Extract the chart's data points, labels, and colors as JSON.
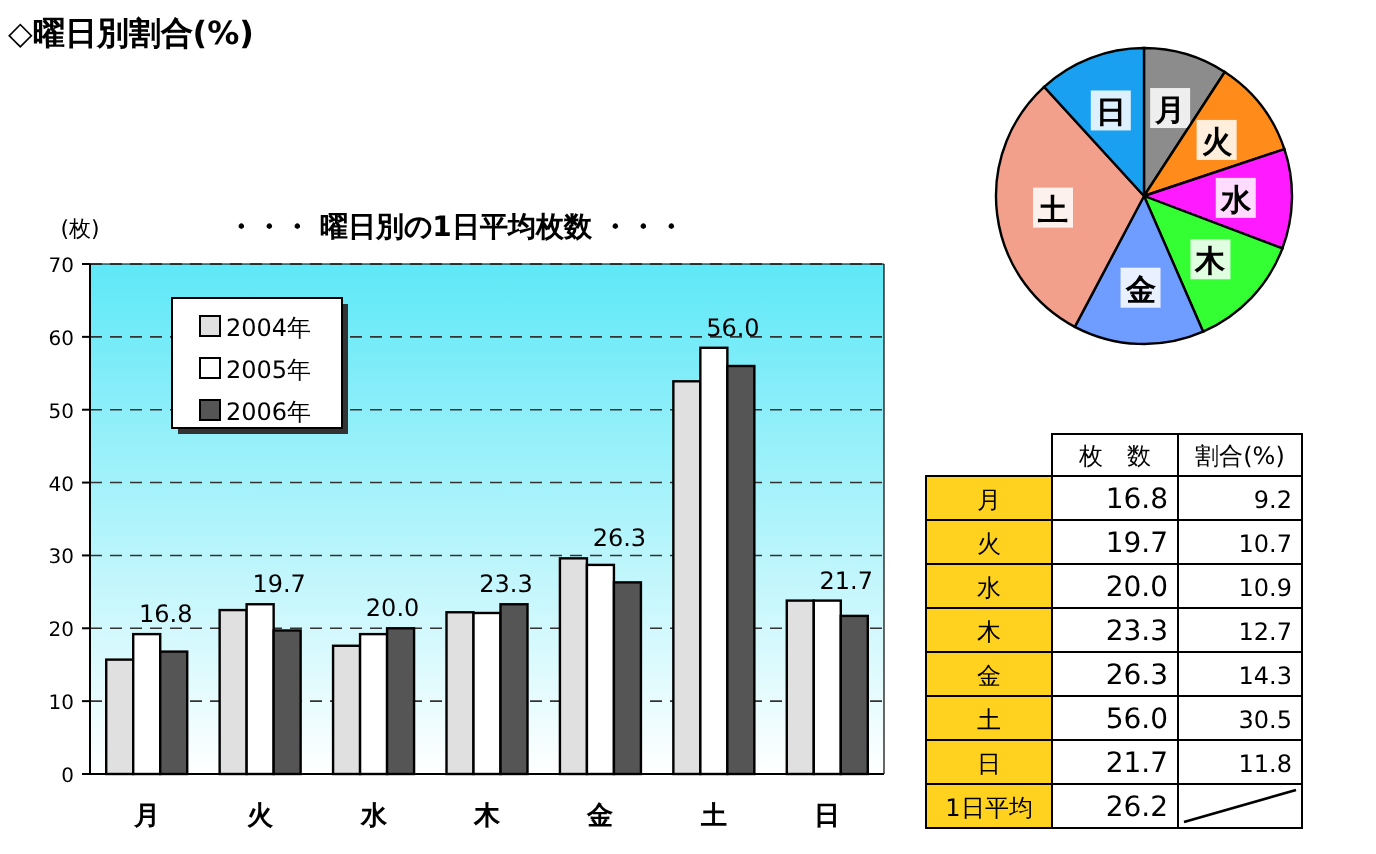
{
  "chart_data": [
    {
      "type": "pie",
      "categories": [
        "月",
        "火",
        "水",
        "木",
        "金",
        "土",
        "日"
      ],
      "values": [
        9.2,
        10.7,
        10.9,
        12.7,
        14.3,
        30.5,
        11.8
      ],
      "colors": [
        "#8c8c8c",
        "#ff8c1a",
        "#ff1aff",
        "#33ff33",
        "#6f9cff",
        "#f2a08c",
        "#1aa0f0"
      ]
    },
    {
      "type": "bar",
      "title": "◇曜日別割合(%)",
      "subtitle": "・・・ 曜日別の1日平均枚数 ・・・",
      "ylabel": "(枚)",
      "categories": [
        "月",
        "火",
        "水",
        "木",
        "金",
        "土",
        "日"
      ],
      "series": [
        {
          "name": "2004年",
          "color": "#e0e0e0",
          "values": [
            15.7,
            22.5,
            17.6,
            22.2,
            29.6,
            53.9,
            23.8
          ]
        },
        {
          "name": "2005年",
          "color": "#ffffff",
          "values": [
            19.2,
            23.3,
            19.2,
            22.1,
            28.7,
            58.5,
            23.8
          ]
        },
        {
          "name": "2006年",
          "color": "#555555",
          "values": [
            16.8,
            19.7,
            20.0,
            23.3,
            26.3,
            56.0,
            21.7
          ],
          "value_labels": [
            "16.8",
            "19.7",
            "20.0",
            "23.3",
            "26.3",
            "56.0",
            "21.7"
          ]
        }
      ],
      "ylim": [
        0,
        70
      ],
      "yticks": [
        0,
        10,
        20,
        30,
        40,
        50,
        60,
        70
      ],
      "grid": "y",
      "line_style": "dashed",
      "legend": "top left"
    },
    {
      "type": "other",
      "categories": [
        "月",
        "火",
        "水",
        "木",
        "金",
        "土",
        "日",
        "1日平均"
      ],
      "series": [
        {
          "name": "枚　数",
          "values": [
            16.8,
            19.7,
            20.0,
            23.3,
            26.3,
            56.0,
            21.7,
            26.2
          ],
          "value_labels": [
            "16.8",
            "19.7",
            "20.0",
            "23.3",
            "26.3",
            "56.0",
            "21.7",
            "26.2"
          ]
        },
        {
          "name": "割合(%)",
          "values": [
            9.2,
            10.7,
            10.9,
            12.7,
            14.3,
            30.5,
            11.8,
            null
          ],
          "value_labels": [
            "9.2",
            "10.7",
            "10.9",
            "12.7",
            "14.3",
            "30.5",
            "11.8",
            null
          ]
        }
      ]
    }
  ]
}
